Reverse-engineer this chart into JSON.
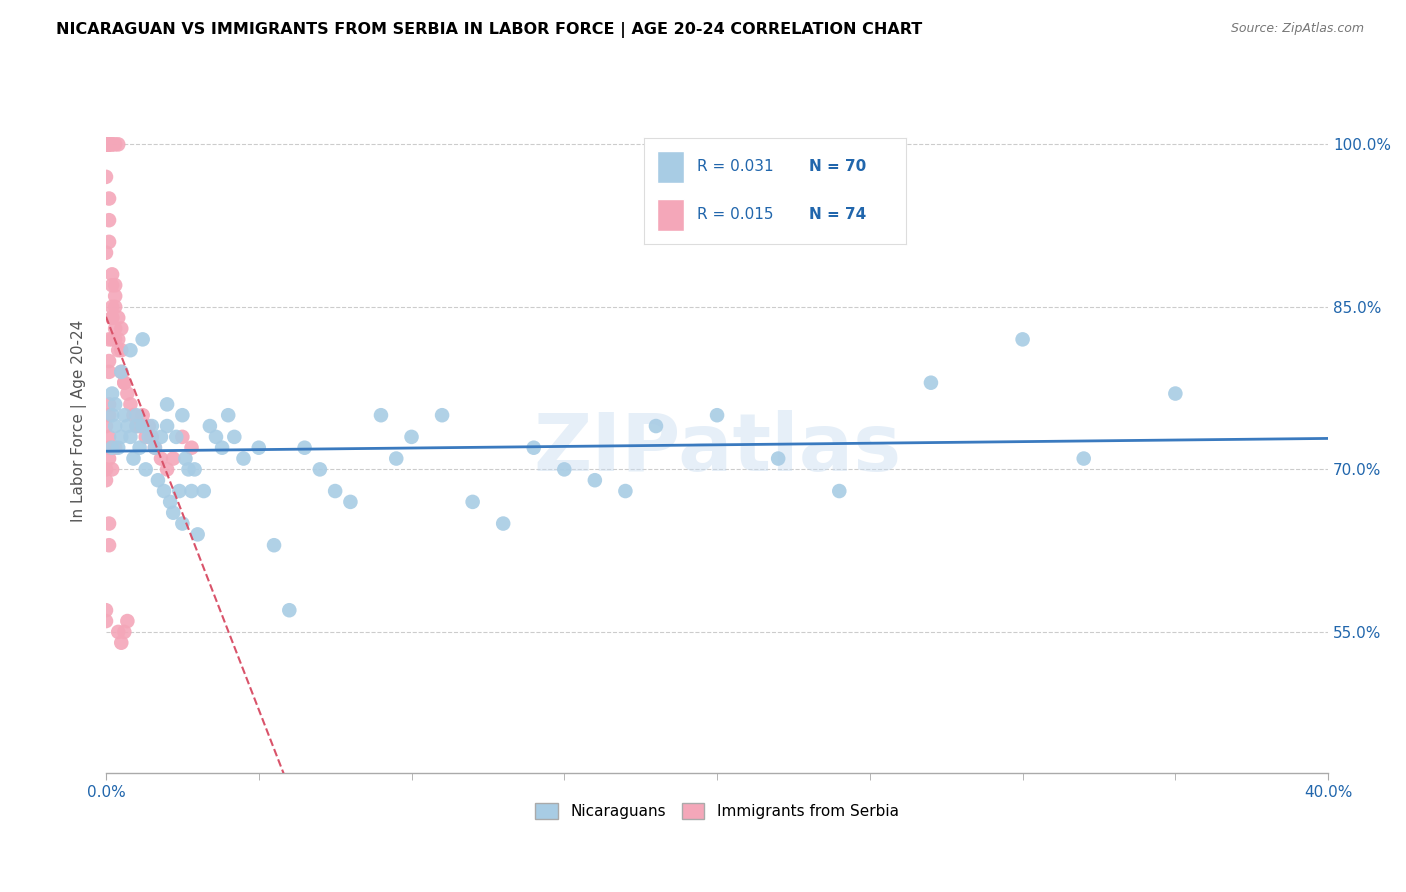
{
  "title": "NICARAGUAN VS IMMIGRANTS FROM SERBIA IN LABOR FORCE | AGE 20-24 CORRELATION CHART",
  "source": "Source: ZipAtlas.com",
  "ylabel": "In Labor Force | Age 20-24",
  "y_ticks": [
    55.0,
    70.0,
    85.0,
    100.0
  ],
  "xlim": [
    0.0,
    0.4
  ],
  "ylim": [
    42.0,
    107.0
  ],
  "color_blue": "#a8cce4",
  "color_pink": "#f4a7b9",
  "color_blue_dark": "#3a7abf",
  "color_pink_dark": "#d9536a",
  "color_blue_text": "#2166ac",
  "color_trendline_blue": "#3a7abf",
  "color_trendline_pink": "#d9536a",
  "watermark": "ZIPatlas",
  "legend_r1": "R = 0.031",
  "legend_n1": "N = 70",
  "legend_r2": "R = 0.015",
  "legend_n2": "N = 74",
  "blue_x": [
    0.002,
    0.002,
    0.003,
    0.003,
    0.004,
    0.005,
    0.006,
    0.007,
    0.008,
    0.009,
    0.01,
    0.01,
    0.011,
    0.012,
    0.013,
    0.014,
    0.015,
    0.016,
    0.017,
    0.018,
    0.019,
    0.02,
    0.021,
    0.022,
    0.023,
    0.024,
    0.025,
    0.026,
    0.027,
    0.028,
    0.029,
    0.03,
    0.032,
    0.034,
    0.036,
    0.038,
    0.04,
    0.042,
    0.045,
    0.05,
    0.055,
    0.06,
    0.065,
    0.07,
    0.075,
    0.08,
    0.09,
    0.095,
    0.1,
    0.11,
    0.12,
    0.13,
    0.14,
    0.15,
    0.16,
    0.17,
    0.18,
    0.2,
    0.22,
    0.24,
    0.27,
    0.3,
    0.32,
    0.35,
    0.002,
    0.005,
    0.008,
    0.012,
    0.02,
    0.025
  ],
  "blue_y": [
    75.0,
    72.0,
    76.0,
    74.0,
    72.0,
    73.0,
    75.0,
    74.0,
    73.0,
    71.0,
    74.0,
    75.0,
    72.0,
    74.0,
    70.0,
    73.0,
    74.0,
    72.0,
    69.0,
    73.0,
    68.0,
    74.0,
    67.0,
    66.0,
    73.0,
    68.0,
    65.0,
    71.0,
    70.0,
    68.0,
    70.0,
    64.0,
    68.0,
    74.0,
    73.0,
    72.0,
    75.0,
    73.0,
    71.0,
    72.0,
    63.0,
    57.0,
    72.0,
    70.0,
    68.0,
    67.0,
    75.0,
    71.0,
    73.0,
    75.0,
    67.0,
    65.0,
    72.0,
    70.0,
    69.0,
    68.0,
    74.0,
    75.0,
    71.0,
    68.0,
    78.0,
    82.0,
    71.0,
    77.0,
    77.0,
    79.0,
    81.0,
    82.0,
    76.0,
    75.0
  ],
  "pink_x": [
    0.0,
    0.0,
    0.0,
    0.0,
    0.0,
    0.0,
    0.0,
    0.001,
    0.001,
    0.001,
    0.001,
    0.001,
    0.002,
    0.002,
    0.002,
    0.002,
    0.003,
    0.003,
    0.003,
    0.004,
    0.004,
    0.005,
    0.005,
    0.006,
    0.006,
    0.007,
    0.008,
    0.009,
    0.01,
    0.011,
    0.012,
    0.013,
    0.014,
    0.015,
    0.016,
    0.018,
    0.02,
    0.022,
    0.025,
    0.028,
    0.0,
    0.0,
    0.001,
    0.001,
    0.002,
    0.003,
    0.004,
    0.005,
    0.006,
    0.007,
    0.0,
    0.001,
    0.002,
    0.003,
    0.004,
    0.005,
    0.001,
    0.002,
    0.003,
    0.004,
    0.001,
    0.001,
    0.002,
    0.003,
    0.001,
    0.002,
    0.001,
    0.001,
    0.001,
    0.0,
    0.001,
    0.0,
    0.001,
    0.0
  ],
  "pink_y": [
    100.0,
    100.0,
    100.0,
    100.0,
    100.0,
    100.0,
    97.0,
    100.0,
    100.0,
    100.0,
    93.0,
    91.0,
    100.0,
    87.0,
    84.0,
    82.0,
    85.0,
    83.0,
    82.0,
    82.0,
    81.0,
    81.0,
    79.0,
    78.0,
    78.0,
    77.0,
    76.0,
    75.0,
    74.0,
    74.0,
    75.0,
    73.0,
    74.0,
    73.0,
    72.0,
    71.0,
    70.0,
    71.0,
    73.0,
    72.0,
    57.0,
    56.0,
    65.0,
    63.0,
    70.0,
    72.0,
    55.0,
    54.0,
    55.0,
    56.0,
    90.0,
    95.0,
    88.0,
    86.0,
    84.0,
    83.0,
    100.0,
    100.0,
    100.0,
    100.0,
    79.0,
    80.0,
    85.0,
    87.0,
    82.0,
    84.0,
    76.0,
    75.0,
    73.0,
    74.0,
    72.0,
    70.0,
    71.0,
    69.0
  ]
}
